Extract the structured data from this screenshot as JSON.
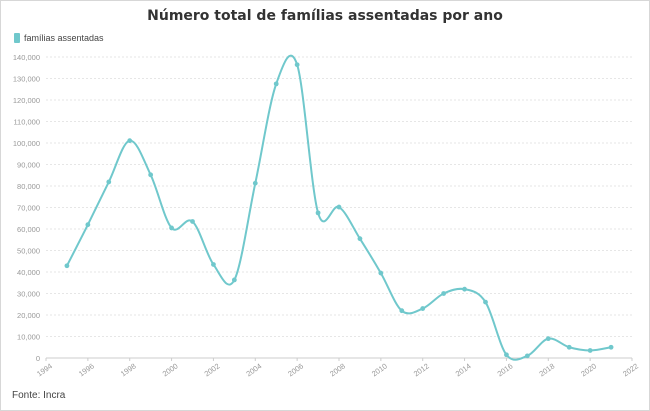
{
  "chart_data": {
    "type": "line",
    "title": "Número total de famílias assentadas por ano",
    "legend": {
      "label": "famílias assentadas",
      "placement": "top-left"
    },
    "color": "#70c8cc",
    "xlim": [
      1994,
      2022
    ],
    "ylim": [
      0,
      140000
    ],
    "x_ticks": [
      "1994",
      "1996",
      "1998",
      "2000",
      "2002",
      "2004",
      "2006",
      "2008",
      "2010",
      "2012",
      "2014",
      "2016",
      "2018",
      "2020",
      "2022"
    ],
    "y_ticks": [
      "0",
      "10,000",
      "20,000",
      "30,000",
      "40,000",
      "50,000",
      "60,000",
      "70,000",
      "80,000",
      "90,000",
      "100,000",
      "110,000",
      "120,000",
      "130,000",
      "140,000"
    ],
    "grid": true,
    "series": [
      {
        "name": "famílias assentadas",
        "x": [
          1995,
          1996,
          1997,
          1998,
          1999,
          2000,
          2001,
          2002,
          2003,
          2004,
          2005,
          2006,
          2007,
          2008,
          2009,
          2010,
          2011,
          2012,
          2013,
          2014,
          2015,
          2016,
          2017,
          2018,
          2019,
          2020,
          2021
        ],
        "values": [
          42900,
          62000,
          81900,
          101100,
          85200,
          60500,
          63500,
          43500,
          36300,
          81300,
          127500,
          136400,
          67500,
          70200,
          55500,
          39500,
          22000,
          23000,
          30000,
          32000,
          26000,
          1500,
          1000,
          9000,
          5000,
          3500,
          5000
        ]
      }
    ]
  },
  "source": "Fonte: Incra"
}
